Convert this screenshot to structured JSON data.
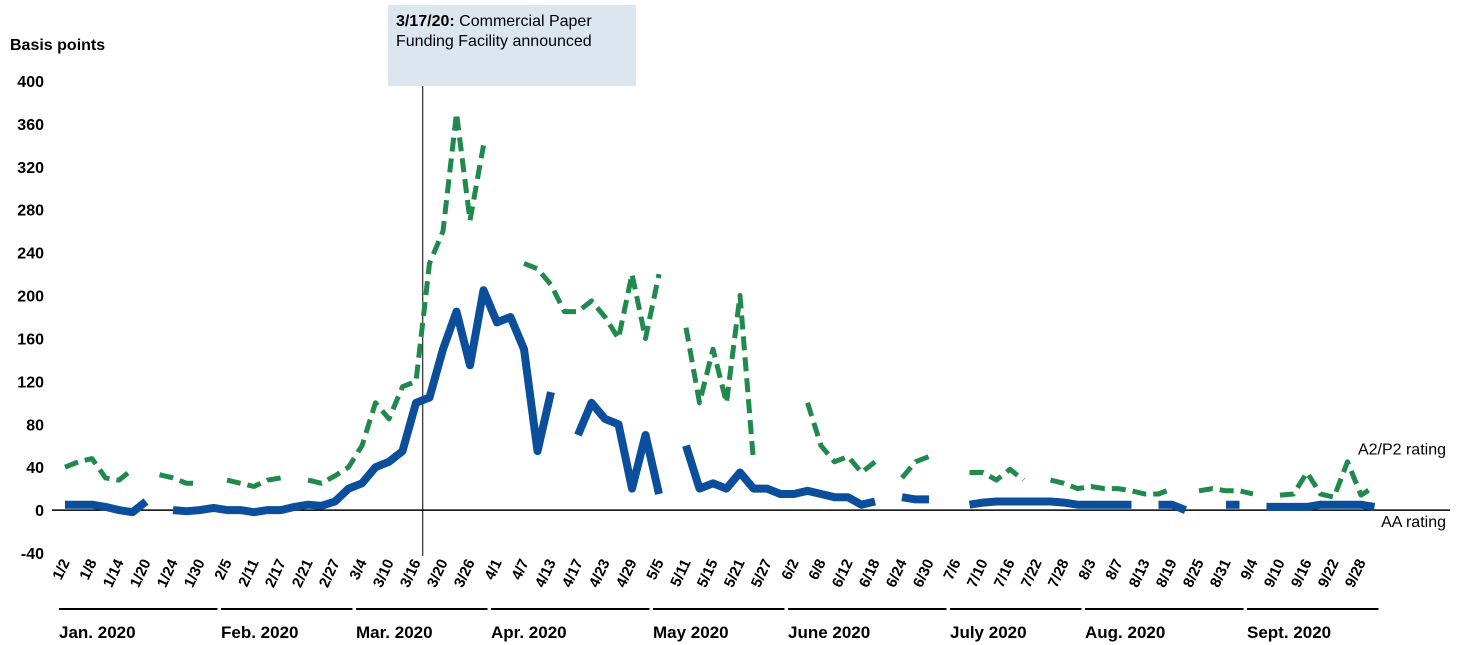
{
  "chart_data": {
    "type": "line",
    "y_label": "Basis points",
    "annotation": {
      "date": "3/17/20:",
      "text": "Commercial Paper Funding Facility announced"
    },
    "months": [
      "Jan. 2020",
      "Feb. 2020",
      "Mar. 2020",
      "Apr. 2020",
      "May 2020",
      "June 2020",
      "July 2020",
      "Aug. 2020",
      "Sept. 2020"
    ],
    "categories": [
      "1/2",
      null,
      "1/8",
      null,
      "1/14",
      null,
      "1/20",
      null,
      "1/24",
      null,
      "1/30",
      null,
      "2/5",
      null,
      "2/11",
      null,
      "2/17",
      null,
      "2/21",
      null,
      "2/27",
      null,
      "3/4",
      null,
      "3/10",
      null,
      "3/16",
      null,
      "3/20",
      null,
      "3/26",
      null,
      "4/1",
      null,
      "4/7",
      null,
      "4/13",
      null,
      "4/17",
      null,
      "4/23",
      null,
      "4/29",
      null,
      "5/5",
      null,
      "5/11",
      null,
      "5/15",
      null,
      "5/21",
      null,
      "5/27",
      null,
      "6/2",
      null,
      "6/8",
      null,
      "6/12",
      null,
      "6/18",
      null,
      "6/24",
      null,
      "6/30",
      null,
      "7/6",
      null,
      "7/10",
      null,
      "7/16",
      null,
      "7/22",
      null,
      "7/28",
      null,
      "8/3",
      null,
      "8/7",
      null,
      "8/13",
      null,
      "8/19",
      null,
      "8/25",
      null,
      "8/31",
      null,
      "9/4",
      null,
      "9/10",
      null,
      "9/16",
      null,
      "9/22",
      null,
      "9/28",
      null
    ],
    "series": [
      {
        "name": "A2/P2 rating",
        "color": "#1f8a4c",
        "dashed": true,
        "values": [
          40,
          45,
          48,
          30,
          28,
          38,
          null,
          33,
          30,
          25,
          25,
          null,
          28,
          25,
          22,
          28,
          30,
          null,
          28,
          25,
          32,
          40,
          60,
          100,
          85,
          115,
          120,
          230,
          260,
          370,
          270,
          340,
          null,
          null,
          230,
          225,
          210,
          185,
          185,
          195,
          180,
          160,
          220,
          160,
          220,
          null,
          170,
          100,
          150,
          100,
          200,
          45,
          null,
          null,
          null,
          100,
          60,
          45,
          50,
          35,
          45,
          null,
          30,
          45,
          50,
          null,
          null,
          35,
          35,
          28,
          38,
          28,
          null,
          28,
          25,
          20,
          22,
          20,
          20,
          18,
          15,
          15,
          20,
          null,
          18,
          20,
          18,
          18,
          15,
          null,
          14,
          15,
          35,
          15,
          12,
          45,
          14,
          22
        ]
      },
      {
        "name": "AA rating",
        "color": "#0b4f9c",
        "dashed": false,
        "values": [
          5,
          5,
          5,
          3,
          0,
          -2,
          8,
          null,
          0,
          -1,
          0,
          2,
          0,
          0,
          -2,
          0,
          0,
          3,
          5,
          4,
          8,
          20,
          25,
          40,
          45,
          55,
          100,
          105,
          150,
          185,
          135,
          205,
          175,
          180,
          150,
          55,
          110,
          null,
          70,
          100,
          85,
          80,
          20,
          70,
          15,
          null,
          60,
          20,
          25,
          20,
          35,
          20,
          20,
          15,
          15,
          18,
          15,
          12,
          12,
          5,
          8,
          null,
          12,
          10,
          10,
          null,
          null,
          5,
          7,
          8,
          8,
          8,
          8,
          8,
          7,
          5,
          5,
          5,
          5,
          5,
          null,
          5,
          5,
          0,
          null,
          null,
          5,
          5,
          null,
          3,
          3,
          3,
          3,
          5,
          5,
          5,
          5,
          3
        ]
      }
    ],
    "ylim": [
      -40,
      400
    ],
    "yticks": [
      -40,
      0,
      40,
      80,
      120,
      160,
      200,
      240,
      280,
      320,
      360,
      400
    ],
    "grid": false
  }
}
